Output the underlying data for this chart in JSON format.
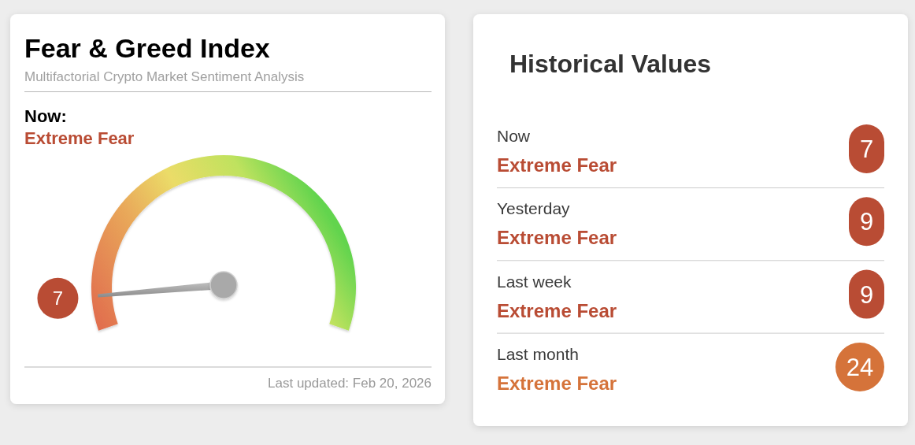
{
  "chart_data": [
    {
      "type": "other",
      "title": "Fear & Greed Index",
      "subtitle": "Multifactorial Crypto Market Sentiment Analysis",
      "values": [
        7
      ],
      "colors": [
        "#b94c34"
      ],
      "data_labels": true,
      "annotations": [
        "Now:",
        "Extreme Fear",
        "Last updated: Feb 20, 2026"
      ]
    },
    {
      "type": "other",
      "title": "Historical Values",
      "values": [
        7,
        9,
        9,
        24
      ],
      "colors": [
        "#b94c34",
        "#b94c34",
        "#b94c34",
        "#d5733a"
      ],
      "data_labels": true,
      "annotations": [
        "Now",
        "Extreme Fear",
        "Yesterday",
        "Extreme Fear",
        "Last week",
        "Extreme Fear",
        "Last month",
        "Extreme Fear"
      ]
    }
  ]
}
